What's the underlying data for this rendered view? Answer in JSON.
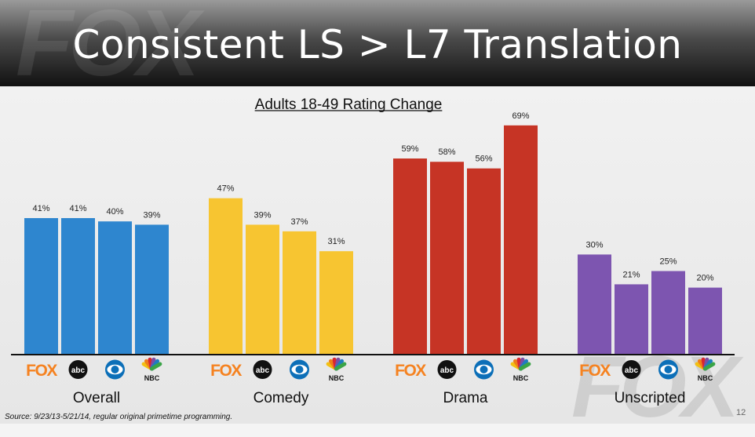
{
  "slide": {
    "title": "Consistent LS > L7 Translation",
    "header_watermark": "FOX",
    "corner_watermark": "FOX",
    "source": "Source: 9/23/13-5/21/14, regular original primetime programming.",
    "page_number": "12"
  },
  "chart_data": {
    "type": "bar",
    "title": "Adults 18-49 Rating Change",
    "categories": [
      "Overall",
      "Comedy",
      "Drama",
      "Unscripted"
    ],
    "series": [
      {
        "name": "FOX",
        "values": [
          41,
          47,
          59,
          30
        ]
      },
      {
        "name": "abc",
        "values": [
          41,
          39,
          58,
          21
        ]
      },
      {
        "name": "CBS",
        "values": [
          40,
          37,
          56,
          25
        ]
      },
      {
        "name": "NBC",
        "values": [
          39,
          31,
          69,
          20
        ]
      }
    ],
    "value_format": "{v}%",
    "group_colors": [
      "#2e86cf",
      "#f7c531",
      "#c63425",
      "#7d55b0"
    ],
    "ylim": [
      0,
      70
    ],
    "legend": "network logos below each bar",
    "network_logos": [
      {
        "name": "FOX",
        "icon": "fox-logo",
        "text": "FOX",
        "color": "#f58220"
      },
      {
        "name": "abc",
        "icon": "abc-logo",
        "text": "abc",
        "color": "#111111"
      },
      {
        "name": "CBS",
        "icon": "cbs-eye-logo",
        "text": "",
        "color": "#0c6fb8"
      },
      {
        "name": "NBC",
        "icon": "nbc-peacock-logo",
        "text": "NBC",
        "color": "#111111"
      }
    ]
  }
}
